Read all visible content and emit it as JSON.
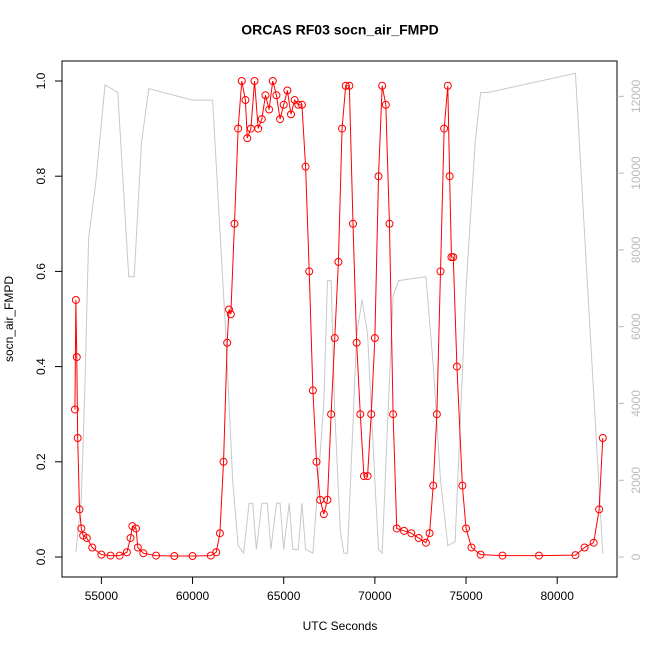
{
  "chart_data": {
    "type": "line",
    "title": "ORCAS RF03 socn_air_FMPD",
    "x_label": "UTC Seconds",
    "y_label": "socn_air_FMPD",
    "xlim": [
      52840,
      83280
    ],
    "xticks": [
      55000,
      60000,
      65000,
      70000,
      75000,
      80000
    ],
    "ylim": [
      -0.042,
      1.042
    ],
    "yticks": [
      {
        "value": 0,
        "label": "0.0"
      },
      {
        "value": 0.2,
        "label": "0.2"
      },
      {
        "value": 0.4,
        "label": "0.4"
      },
      {
        "value": 0.6,
        "label": "0.6"
      },
      {
        "value": 0.8,
        "label": "0.8"
      },
      {
        "value": 1,
        "label": "1.0"
      }
    ],
    "y2lim": [
      -520,
      12920
    ],
    "y2ticks": [
      0,
      2000,
      4000,
      6000,
      8000,
      10000,
      12000
    ],
    "series": [
      {
        "color": "#ff0000",
        "markers": true,
        "x": [
          53550,
          53600,
          53650,
          53700,
          53800,
          53900,
          54000,
          54200,
          54500,
          55000,
          55500,
          56000,
          56400,
          56600,
          56700,
          56900,
          57000,
          57300,
          58000,
          59000,
          60000,
          61000,
          61300,
          61500,
          61700,
          61900,
          62000,
          62100,
          62300,
          62500,
          62700,
          62900,
          63000,
          63200,
          63400,
          63600,
          63800,
          64000,
          64200,
          64400,
          64600,
          64800,
          65000,
          65200,
          65400,
          65600,
          65800,
          66000,
          66200,
          66400,
          66600,
          66800,
          67000,
          67200,
          67400,
          67600,
          67800,
          68000,
          68200,
          68400,
          68600,
          68800,
          69000,
          69200,
          69400,
          69600,
          69800,
          70000,
          70200,
          70400,
          70600,
          70800,
          71000,
          71200,
          71600,
          72000,
          72400,
          72800,
          73000,
          73200,
          73400,
          73600,
          73800,
          74000,
          74100,
          74200,
          74300,
          74500,
          74800,
          75000,
          75300,
          75800,
          77000,
          79000,
          81000,
          81500,
          82000,
          82300,
          82500
        ],
        "values": [
          0.31,
          0.54,
          0.42,
          0.25,
          0.1,
          0.06,
          0.045,
          0.04,
          0.02,
          0.005,
          0.003,
          0.003,
          0.01,
          0.04,
          0.065,
          0.06,
          0.02,
          0.008,
          0.003,
          0.002,
          0.002,
          0.003,
          0.01,
          0.05,
          0.2,
          0.45,
          0.52,
          0.51,
          0.7,
          0.9,
          1.0,
          0.96,
          0.88,
          0.9,
          1.0,
          0.9,
          0.92,
          0.97,
          0.94,
          1.0,
          0.97,
          0.92,
          0.95,
          0.98,
          0.93,
          0.96,
          0.95,
          0.95,
          0.82,
          0.6,
          0.35,
          0.2,
          0.12,
          0.09,
          0.12,
          0.3,
          0.46,
          0.62,
          0.9,
          0.99,
          0.99,
          0.7,
          0.45,
          0.3,
          0.17,
          0.17,
          0.3,
          0.46,
          0.8,
          0.99,
          0.95,
          0.7,
          0.3,
          0.06,
          0.055,
          0.05,
          0.04,
          0.03,
          0.05,
          0.15,
          0.3,
          0.6,
          0.9,
          0.99,
          0.8,
          0.63,
          0.63,
          0.4,
          0.15,
          0.06,
          0.02,
          0.005,
          0.003,
          0.003,
          0.004,
          0.02,
          0.03,
          0.1,
          0.25
        ]
      },
      {
        "color": "#c8c8c8",
        "axis": "y2",
        "markers": false,
        "x": [
          53600,
          53900,
          54100,
          54300,
          54700,
          55200,
          55900,
          56500,
          56800,
          57200,
          57600,
          60000,
          61100,
          61800,
          62200,
          62500,
          62800,
          63100,
          63300,
          63500,
          63800,
          64100,
          64300,
          64600,
          64800,
          65000,
          65300,
          65500,
          65800,
          66000,
          66200,
          66600,
          67200,
          67400,
          67600,
          67800,
          68100,
          68300,
          68500,
          68800,
          69000,
          69300,
          69600,
          70000,
          70200,
          70400,
          70700,
          71000,
          71300,
          72800,
          73200,
          73600,
          74000,
          74400,
          75000,
          75500,
          75800,
          76200,
          81000,
          82500
        ],
        "values": [
          130,
          1500,
          4500,
          8300,
          9800,
          12300,
          12100,
          7300,
          7300,
          10800,
          12200,
          11900,
          11900,
          6000,
          2000,
          300,
          100,
          1400,
          1400,
          200,
          1400,
          1400,
          200,
          1400,
          1400,
          200,
          1400,
          200,
          200,
          1400,
          200,
          100,
          4000,
          7200,
          7200,
          3800,
          700,
          100,
          100,
          3500,
          5800,
          6700,
          5800,
          2000,
          200,
          100,
          3500,
          6800,
          7200,
          7300,
          5000,
          2000,
          300,
          400,
          7000,
          10800,
          12100,
          12100,
          12600,
          100
        ]
      }
    ]
  }
}
